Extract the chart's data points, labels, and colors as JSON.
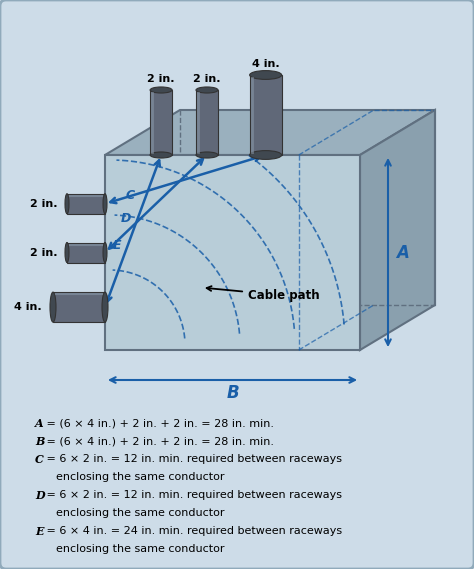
{
  "background_color": "#cddce8",
  "box_front_color": "#b8cdd8",
  "box_top_color": "#9ab0be",
  "box_right_color": "#8aa0ae",
  "box_edge_color": "#607080",
  "formula_lines_italic": [
    "A",
    "B",
    "C",
    "D",
    "E"
  ],
  "formula_lines": [
    [
      "A",
      " = (6 × 4 in.) + 2 in. + 2 in. = 28 in. min."
    ],
    [
      "B",
      " = (6 × 4 in.) + 2 in. + 2 in. = 28 in. min."
    ],
    [
      "C",
      " = 6 × 2 in. = 12 in. min. required between raceways"
    ],
    [
      "",
      "      enclosing the same conductor"
    ],
    [
      "D",
      " = 6 × 2 in. = 12 in. min. required between raceways"
    ],
    [
      "",
      "      enclosing the same conductor"
    ],
    [
      "E",
      " = 6 × 4 in. = 24 in. min. required between raceways"
    ],
    [
      "",
      "      enclosing the same conductor"
    ]
  ],
  "top_conduit_labels": [
    "2 in.",
    "2 in.",
    "4 in."
  ],
  "left_conduit_labels": [
    "2 in.",
    "2 in.",
    "4 in."
  ],
  "dim_label_A": "A",
  "dim_label_B": "B",
  "arrow_color": "#1a5fa8",
  "dashed_color": "#1a5fa8",
  "conduit_color": "#606878",
  "conduit_highlight": "#8898a8",
  "conduit_dark": "#404850",
  "text_color": "#000000",
  "label_color": "#1a5fa8",
  "cable_path_arrow_color": "#000000"
}
